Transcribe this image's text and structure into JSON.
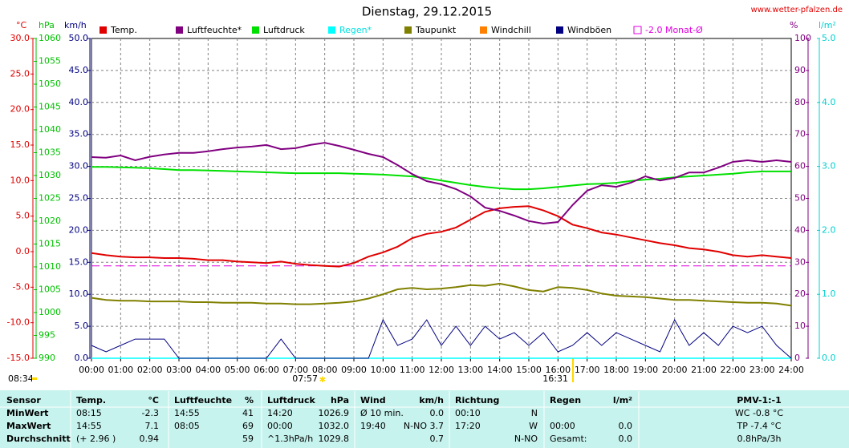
{
  "chart_data": {
    "type": "line",
    "title": "Dienstag, 29.12.2015",
    "source": "www.wetter-pfalzen.de",
    "annotations": [
      "08:34",
      "07:57",
      "16:31"
    ],
    "x": [
      0,
      0.5,
      1,
      1.5,
      2,
      2.5,
      3,
      3.5,
      4,
      4.5,
      5,
      5.5,
      6,
      6.5,
      7,
      7.5,
      8,
      8.5,
      9,
      9.5,
      10,
      10.5,
      11,
      11.5,
      12,
      12.5,
      13,
      13.5,
      14,
      14.5,
      15,
      15.5,
      16,
      16.5,
      17,
      17.5,
      18,
      18.5,
      19,
      19.5,
      20,
      20.5,
      21,
      21.5,
      22,
      22.5,
      23,
      23.5,
      24
    ],
    "xlim": [
      0,
      24
    ],
    "xticks": [
      {
        "value": 0,
        "label": "00:00"
      },
      {
        "value": 1,
        "label": "01:00"
      },
      {
        "value": 2,
        "label": "02:00"
      },
      {
        "value": 3,
        "label": "03:00"
      },
      {
        "value": 4,
        "label": "04:00"
      },
      {
        "value": 5,
        "label": "05:00"
      },
      {
        "value": 6,
        "label": "06:00"
      },
      {
        "value": 7,
        "label": "07:00"
      },
      {
        "value": 8,
        "label": "08:00"
      },
      {
        "value": 9,
        "label": "09:00"
      },
      {
        "value": 10,
        "label": "10:00"
      },
      {
        "value": 11,
        "label": "11:00"
      },
      {
        "value": 12,
        "label": "12:00"
      },
      {
        "value": 13,
        "label": "13:00"
      },
      {
        "value": 14,
        "label": "14:00"
      },
      {
        "value": 15,
        "label": "15:00"
      },
      {
        "value": 16,
        "label": "16:00"
      },
      {
        "value": 17,
        "label": "17:00"
      },
      {
        "value": 18,
        "label": "18:00"
      },
      {
        "value": 19,
        "label": "19:00"
      },
      {
        "value": 20,
        "label": "20:00"
      },
      {
        "value": 21,
        "label": "21:00"
      },
      {
        "value": 22,
        "label": "22:00"
      },
      {
        "value": 23,
        "label": "23:00"
      },
      {
        "value": 24,
        "label": "24:00"
      }
    ],
    "grid": true,
    "axes": [
      {
        "label": "°C",
        "color": "#e00000",
        "lim": [
          -15,
          30
        ],
        "ticks": [
          {
            "value": 30,
            "label": "30.0"
          },
          {
            "value": 25,
            "label": "25.0"
          },
          {
            "value": 20,
            "label": "20.0"
          },
          {
            "value": 15,
            "label": "15.0"
          },
          {
            "value": 10,
            "label": "10.0"
          },
          {
            "value": 5,
            "label": "5.0"
          },
          {
            "value": 0,
            "label": "0.0"
          },
          {
            "value": -5,
            "label": "-5.0"
          },
          {
            "value": -10,
            "label": "-10.0"
          },
          {
            "value": -15,
            "label": "-15.0"
          }
        ]
      },
      {
        "label": "hPa",
        "color": "#00c000",
        "lim": [
          990,
          1060
        ],
        "ticks": [
          1060,
          1055,
          1050,
          1045,
          1040,
          1035,
          1030,
          1025,
          1020,
          1015,
          1010,
          1005,
          1000,
          995,
          990
        ]
      },
      {
        "label": "km/h",
        "color": "#000080",
        "lim": [
          0,
          50
        ],
        "ticks": [
          {
            "value": 50,
            "label": "50.0"
          },
          {
            "value": 45,
            "label": "45.0"
          },
          {
            "value": 40,
            "label": "40.0"
          },
          {
            "value": 35,
            "label": "35.0"
          },
          {
            "value": 30,
            "label": "30.0"
          },
          {
            "value": 25,
            "label": "25.0"
          },
          {
            "value": 20,
            "label": "20.0"
          },
          {
            "value": 15,
            "label": "15.0"
          },
          {
            "value": 10,
            "label": "10.0"
          },
          {
            "value": 5,
            "label": "5.0"
          },
          {
            "value": 0,
            "label": "0.0"
          }
        ]
      },
      {
        "label": "%",
        "color": "#800080",
        "lim": [
          0,
          100
        ],
        "ticks": [
          100,
          90,
          80,
          70,
          60,
          50,
          40,
          30,
          20,
          10,
          0
        ]
      },
      {
        "label": "l/m²",
        "color": "#00d0d0",
        "lim": [
          0,
          5
        ],
        "ticks": [
          {
            "value": 5,
            "label": "5.0"
          },
          {
            "value": 4,
            "label": "4.0"
          },
          {
            "value": 3,
            "label": "3.0"
          },
          {
            "value": 2,
            "label": "2.0"
          },
          {
            "value": 1,
            "label": "1.0"
          },
          {
            "value": 0,
            "label": "0.0"
          }
        ]
      }
    ],
    "series": [
      {
        "name": "Temp.",
        "color": "#e00000",
        "axis": 0,
        "values": [
          -0.2,
          -0.5,
          -0.7,
          -0.8,
          -0.8,
          -0.9,
          -0.9,
          -1.0,
          -1.2,
          -1.2,
          -1.4,
          -1.5,
          -1.6,
          -1.4,
          -1.7,
          -1.9,
          -2.0,
          -2.1,
          -1.6,
          -0.7,
          -0.1,
          0.7,
          1.9,
          2.5,
          2.8,
          3.4,
          4.5,
          5.6,
          6.1,
          6.3,
          6.4,
          5.8,
          5.0,
          3.8,
          3.3,
          2.7,
          2.4,
          2.0,
          1.6,
          1.2,
          0.9,
          0.5,
          0.3,
          0.0,
          -0.5,
          -0.7,
          -0.5,
          -0.7,
          -0.9
        ]
      },
      {
        "name": "Luftfeuchte*",
        "color": "#800080",
        "axis": 3,
        "values": [
          62.9,
          62.7,
          63.4,
          61.9,
          63.0,
          63.7,
          64.2,
          64.2,
          64.7,
          65.4,
          65.9,
          66.2,
          66.7,
          65.4,
          65.7,
          66.7,
          67.4,
          66.4,
          65.2,
          63.9,
          62.9,
          60.4,
          57.6,
          55.4,
          54.4,
          52.9,
          50.6,
          47.1,
          46.1,
          44.6,
          42.9,
          42.1,
          42.6,
          47.9,
          52.4,
          54.1,
          53.6,
          54.9,
          56.9,
          55.6,
          56.4,
          58.1,
          58.1,
          59.6,
          61.4,
          61.9,
          61.4,
          61.9,
          61.4
        ]
      },
      {
        "name": "Luftdruck",
        "color": "#00e000",
        "axis": 1,
        "values": [
          1031.9,
          1031.9,
          1031.8,
          1031.7,
          1031.6,
          1031.4,
          1031.2,
          1031.2,
          1031.1,
          1031.0,
          1030.9,
          1030.8,
          1030.7,
          1030.6,
          1030.5,
          1030.5,
          1030.5,
          1030.5,
          1030.4,
          1030.3,
          1030.2,
          1030.0,
          1029.8,
          1029.4,
          1028.9,
          1028.4,
          1027.9,
          1027.5,
          1027.2,
          1027.0,
          1027.0,
          1027.2,
          1027.5,
          1027.8,
          1028.1,
          1028.2,
          1028.4,
          1028.8,
          1029.1,
          1029.3,
          1029.6,
          1029.8,
          1030.0,
          1030.2,
          1030.4,
          1030.7,
          1030.9,
          1030.9,
          1030.9
        ]
      },
      {
        "name": "Regen*",
        "color": "#00ffff",
        "axis": 4,
        "values": [
          0,
          0,
          0,
          0,
          0,
          0,
          0,
          0,
          0,
          0,
          0,
          0,
          0,
          0,
          0,
          0,
          0,
          0,
          0,
          0,
          0,
          0,
          0,
          0,
          0,
          0,
          0,
          0,
          0,
          0,
          0,
          0,
          0,
          0,
          0,
          0,
          0,
          0,
          0,
          0,
          0,
          0,
          0,
          0,
          0,
          0,
          0,
          0,
          0
        ]
      },
      {
        "name": "Taupunkt",
        "color": "#808000",
        "axis": 0,
        "values": [
          -6.5,
          -6.8,
          -6.9,
          -6.9,
          -7.0,
          -7.0,
          -7.0,
          -7.1,
          -7.1,
          -7.2,
          -7.2,
          -7.2,
          -7.3,
          -7.3,
          -7.4,
          -7.4,
          -7.3,
          -7.2,
          -7.0,
          -6.6,
          -6.0,
          -5.3,
          -5.1,
          -5.3,
          -5.2,
          -5.0,
          -4.7,
          -4.8,
          -4.5,
          -4.9,
          -5.4,
          -5.6,
          -5.0,
          -5.1,
          -5.4,
          -5.9,
          -6.2,
          -6.3,
          -6.4,
          -6.6,
          -6.8,
          -6.8,
          -6.9,
          -7.0,
          -7.1,
          -7.2,
          -7.2,
          -7.3,
          -7.6
        ]
      },
      {
        "name": "Windchill",
        "color": "#ff8000",
        "axis": 0,
        "values": [
          null,
          null,
          null,
          null,
          null,
          null,
          null,
          null,
          null,
          null,
          null,
          null,
          null,
          null,
          null,
          null,
          null,
          null,
          null,
          null,
          null,
          null,
          null,
          null,
          null,
          null,
          null,
          null,
          null,
          null,
          null,
          null,
          null,
          null,
          null,
          null,
          null,
          null,
          null,
          null,
          null,
          null,
          null,
          null,
          null,
          null,
          null,
          null,
          null
        ]
      },
      {
        "name": "Windböen",
        "color": "#000080",
        "axis": 2,
        "values": [
          2,
          1,
          2,
          3,
          3,
          3,
          0,
          0,
          0,
          0,
          0,
          0,
          0,
          3,
          0,
          0,
          0,
          0,
          0,
          0,
          6,
          2,
          3,
          6,
          2,
          5,
          2,
          5,
          3,
          4,
          2,
          4,
          1,
          2,
          4,
          2,
          4,
          3,
          2,
          1,
          6,
          2,
          4,
          2,
          5,
          4,
          5,
          2,
          0
        ]
      }
    ],
    "monthly_avg": {
      "label": "-2.0 Monat-Ø",
      "value": -2.0,
      "axis": 0,
      "color": "#e000e0"
    }
  },
  "table": {
    "header": [
      "Sensor",
      "Temp.",
      "°C",
      "Luftfeuchte",
      "%",
      "Luftdruck",
      "hPa",
      "Wind",
      "km/h",
      "Richtung",
      null,
      "Regen",
      "l/m²",
      "PMV-1:-1"
    ],
    "rows": [
      [
        "MinWert",
        "08:15",
        "-2.3",
        "14:55",
        "41",
        "14:20",
        "1026.9",
        "Ø 10 min.",
        "0.0",
        "00:10",
        "N",
        null,
        null,
        "WC -0.8 °C"
      ],
      [
        "MaxWert",
        "14:55",
        "7.1",
        "08:05",
        "69",
        "00:00",
        "1032.0",
        "19:40",
        "N-NO 3.7",
        "17:20",
        "W",
        "00:00",
        "0.0",
        "TP -7.4 °C"
      ],
      [
        "Durchschnitt",
        "(+ 2.96 )",
        "0.94",
        null,
        "59",
        "^1.3hPa/h",
        "1029.8",
        null,
        "0.7",
        null,
        "N-NO",
        "Gesamt:",
        "0.0",
        "0.8hPa/3h"
      ]
    ]
  }
}
